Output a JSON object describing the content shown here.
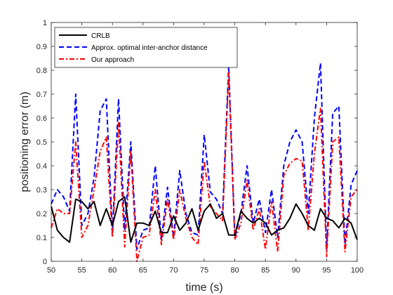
{
  "chart_data": {
    "type": "line",
    "xlabel": "time (s)",
    "ylabel": "positioning error (m)",
    "xlim": [
      50,
      100
    ],
    "ylim": [
      0,
      1
    ],
    "x_ticks": [
      "50",
      "55",
      "60",
      "65",
      "70",
      "75",
      "80",
      "85",
      "90",
      "95",
      "100"
    ],
    "y_ticks": [
      "0",
      "0.1",
      "0.2",
      "0.3",
      "0.4",
      "0.5",
      "0.6",
      "0.7",
      "0.8",
      "0.9",
      "1"
    ],
    "grid": false,
    "legend_position": "top-left",
    "x": [
      50,
      51,
      52,
      53,
      54,
      55,
      56,
      57,
      58,
      59,
      60,
      61,
      62,
      63,
      64,
      65,
      66,
      67,
      68,
      69,
      70,
      71,
      72,
      73,
      74,
      75,
      76,
      77,
      78,
      79,
      80,
      81,
      82,
      83,
      84,
      85,
      86,
      87,
      88,
      89,
      90,
      91,
      92,
      93,
      94,
      95,
      96,
      97,
      98,
      99,
      100
    ],
    "series": [
      {
        "name": "CRLB",
        "color": "#000000",
        "dash": "solid",
        "values": [
          0.23,
          0.13,
          0.1,
          0.08,
          0.26,
          0.25,
          0.22,
          0.25,
          0.15,
          0.22,
          0.15,
          0.25,
          0.27,
          0.08,
          0.16,
          0.16,
          0.15,
          0.21,
          0.12,
          0.12,
          0.19,
          0.13,
          0.16,
          0.22,
          0.13,
          0.21,
          0.24,
          0.18,
          0.2,
          0.11,
          0.11,
          0.21,
          0.18,
          0.16,
          0.18,
          0.16,
          0.11,
          0.13,
          0.14,
          0.18,
          0.24,
          0.2,
          0.15,
          0.13,
          0.22,
          0.18,
          0.17,
          0.14,
          0.18,
          0.16,
          0.09
        ]
      },
      {
        "name": "Approx. optimal inter-anchor distance",
        "color": "#0000ff",
        "dash": "dashed",
        "values": [
          0.24,
          0.3,
          0.27,
          0.21,
          0.7,
          0.15,
          0.2,
          0.35,
          0.63,
          0.68,
          0.12,
          0.68,
          0.13,
          0.5,
          0.05,
          0.13,
          0.14,
          0.4,
          0.09,
          0.31,
          0.1,
          0.38,
          0.2,
          0.12,
          0.11,
          0.53,
          0.29,
          0.26,
          0.2,
          0.82,
          0.1,
          0.2,
          0.4,
          0.16,
          0.26,
          0.12,
          0.3,
          0.1,
          0.4,
          0.5,
          0.55,
          0.5,
          0.2,
          0.6,
          0.83,
          0.05,
          0.62,
          0.65,
          0.07,
          0.32,
          0.38
        ]
      },
      {
        "name": "Our approach",
        "color": "#ff0000",
        "dash": "dashdot",
        "values": [
          0.14,
          0.22,
          0.2,
          0.2,
          0.5,
          0.1,
          0.15,
          0.3,
          0.46,
          0.52,
          0.1,
          0.58,
          0.06,
          0.46,
          0.0,
          0.1,
          0.11,
          0.3,
          0.07,
          0.26,
          0.09,
          0.3,
          0.18,
          0.1,
          0.07,
          0.42,
          0.23,
          0.2,
          0.17,
          0.79,
          0.09,
          0.16,
          0.34,
          0.13,
          0.22,
          0.05,
          0.25,
          0.04,
          0.36,
          0.41,
          0.43,
          0.42,
          0.13,
          0.45,
          0.64,
          0.02,
          0.5,
          0.52,
          0.04,
          0.27,
          0.3
        ]
      }
    ]
  }
}
